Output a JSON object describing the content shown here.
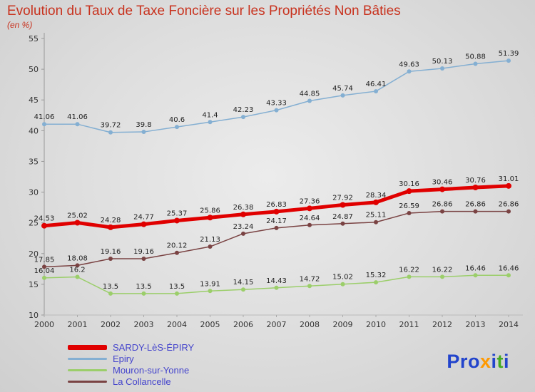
{
  "title": "Evolution du Taux de Taxe Foncière sur les Propriétés Non Bâties",
  "subtitle": "(en %)",
  "chart_data": {
    "type": "line",
    "x": [
      2000,
      2001,
      2002,
      2003,
      2004,
      2005,
      2006,
      2007,
      2008,
      2009,
      2010,
      2011,
      2012,
      2013,
      2014
    ],
    "ylim": [
      10,
      55
    ],
    "yticks": [
      10,
      15,
      20,
      25,
      30,
      35,
      40,
      45,
      50,
      55
    ],
    "grid": false,
    "legend_position": "bottom-left",
    "series": [
      {
        "name": "SARDY-LèS-ÉPIRY",
        "color": "#e00000",
        "width": 5,
        "values": [
          24.53,
          25.02,
          24.28,
          24.77,
          25.37,
          25.86,
          26.38,
          26.83,
          27.36,
          27.92,
          28.34,
          30.16,
          30.46,
          30.76,
          31.01
        ]
      },
      {
        "name": "Epiry",
        "color": "#84afd2",
        "width": 1.5,
        "values": [
          41.06,
          41.06,
          39.72,
          39.8,
          40.6,
          41.4,
          42.23,
          43.33,
          44.85,
          45.74,
          46.41,
          49.63,
          50.13,
          50.88,
          51.39
        ]
      },
      {
        "name": "Mouron-sur-Yonne",
        "color": "#9bce6a",
        "width": 1.5,
        "values": [
          16.04,
          16.2,
          13.5,
          13.5,
          13.5,
          13.91,
          14.15,
          14.43,
          14.72,
          15.02,
          15.32,
          16.22,
          16.22,
          16.46,
          16.46
        ]
      },
      {
        "name": "La Collancelle",
        "color": "#7a4343",
        "width": 1.5,
        "values": [
          17.85,
          18.08,
          19.16,
          19.16,
          20.12,
          21.13,
          23.24,
          24.17,
          24.64,
          24.87,
          25.11,
          26.59,
          26.86,
          26.86,
          26.86
        ]
      }
    ]
  },
  "legend": {
    "text_color": "#4444cc"
  },
  "logo": {
    "letters": [
      {
        "ch": "P",
        "color": "#2244cc"
      },
      {
        "ch": "r",
        "color": "#2244cc"
      },
      {
        "ch": "o",
        "color": "#2244cc"
      },
      {
        "ch": "x",
        "color": "#ff9900"
      },
      {
        "ch": "i",
        "color": "#2244cc"
      },
      {
        "ch": "t",
        "color": "#44aa22"
      },
      {
        "ch": "i",
        "color": "#2244cc"
      }
    ]
  }
}
